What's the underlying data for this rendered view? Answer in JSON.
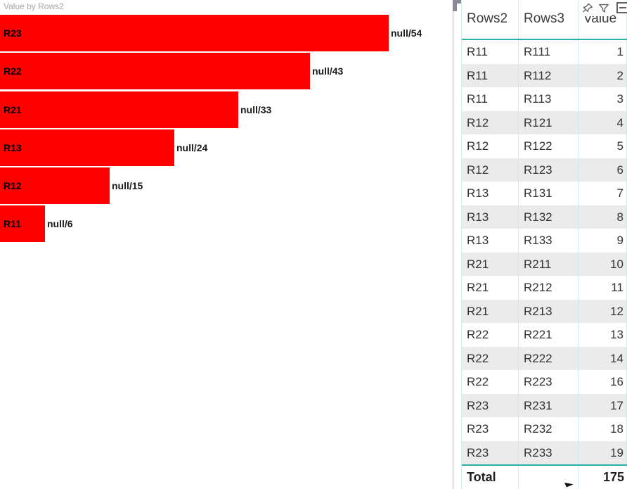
{
  "chart_data": [
    {
      "type": "bar",
      "orientation": "horizontal",
      "title": "Value by Rows2",
      "categories": [
        "R23",
        "R22",
        "R21",
        "R13",
        "R12",
        "R11"
      ],
      "values": [
        54,
        43,
        33,
        24,
        15,
        6
      ],
      "data_labels": [
        "null/54",
        "null/43",
        "null/33",
        "null/24",
        "null/15",
        "null/6"
      ],
      "bar_color": "#ff0000",
      "xlim": [
        0,
        54
      ],
      "grid": "off",
      "legend": "off",
      "value_axis": "hidden",
      "category_axis": "hidden"
    },
    {
      "type": "table",
      "columns": [
        "Rows2",
        "Rows3",
        "Value"
      ],
      "rows": [
        [
          "R11",
          "R111",
          "1"
        ],
        [
          "R11",
          "R112",
          "2"
        ],
        [
          "R11",
          "R113",
          "3"
        ],
        [
          "R12",
          "R121",
          "4"
        ],
        [
          "R12",
          "R122",
          "5"
        ],
        [
          "R12",
          "R123",
          "6"
        ],
        [
          "R13",
          "R131",
          "7"
        ],
        [
          "R13",
          "R132",
          "8"
        ],
        [
          "R13",
          "R133",
          "9"
        ],
        [
          "R21",
          "R211",
          "10"
        ],
        [
          "R21",
          "R212",
          "11"
        ],
        [
          "R21",
          "R213",
          "12"
        ],
        [
          "R22",
          "R221",
          "13"
        ],
        [
          "R22",
          "R222",
          "14"
        ],
        [
          "R22",
          "R223",
          "16"
        ],
        [
          "R23",
          "R231",
          "17"
        ],
        [
          "R23",
          "R232",
          "18"
        ],
        [
          "R23",
          "R233",
          "19"
        ]
      ],
      "total_label": "Total",
      "total_value": "175"
    }
  ],
  "visual_header": {
    "icons": [
      "pin-icon",
      "filter-icon",
      "more-icon"
    ]
  },
  "colors": {
    "bar_red": "#ff0000",
    "title_gray": "#a6a6a6",
    "teal_accent": "#29b1a9",
    "gridline": "#cde9ef",
    "row_alt": "#ebebeb",
    "text_dark": "#323232"
  }
}
